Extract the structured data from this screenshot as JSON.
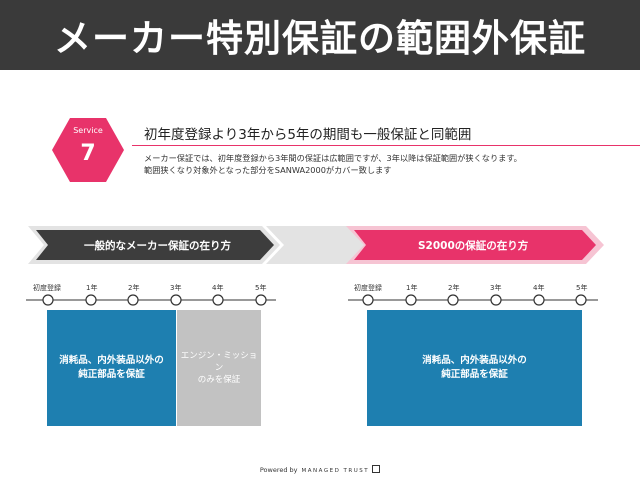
{
  "header": {
    "title": "メーカー特別保証の範囲外保証"
  },
  "service": {
    "label": "Service",
    "number": "7",
    "title": "初年度登録より3年から5年の期間も一般保証と同範囲",
    "desc_line1": "メーカー保証では、初年度登録から3年間の保証は広範囲ですが、3年以降は保証範囲が狭くなります。",
    "desc_line2": "範囲狭くなり対象外となった部分をSANWA2000がカバー致します"
  },
  "left_panel": {
    "banner": "一般的なメーカー保証の在り方",
    "timeline": [
      "初度登録",
      "1年",
      "2年",
      "3年",
      "4年",
      "5年"
    ],
    "box_main_line1": "消耗品、内外装品以外の",
    "box_main_line2": "純正部品を保証",
    "box_grey_line1": "エンジン・ミッション",
    "box_grey_line2": "のみを保証"
  },
  "right_panel": {
    "banner": "S2000の保証の在り方",
    "timeline": [
      "初度登録",
      "1年",
      "2年",
      "3年",
      "4年",
      "5年"
    ],
    "box_main_line1": "消耗品、内外装品以外の",
    "box_main_line2": "純正部品を保証"
  },
  "footer": {
    "powered_by": "Powered by",
    "brand": "MANAGED TRUST"
  },
  "colors": {
    "header_bg": "#3a3a3a",
    "accent_pink": "#e8336a",
    "box_blue": "#1e7fb0",
    "box_grey": "#c2c2c2",
    "banner_dark": "#3d3d3d"
  }
}
